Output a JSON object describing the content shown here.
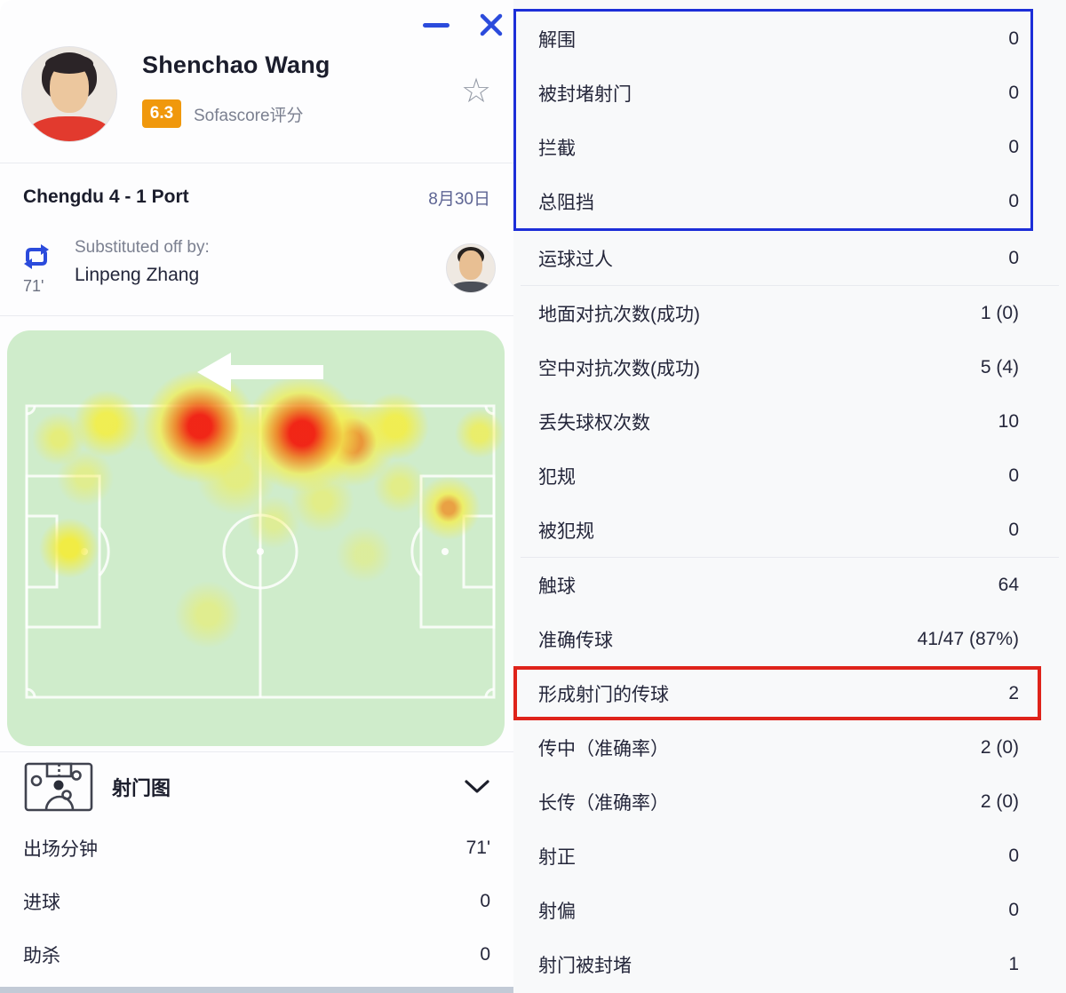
{
  "window": {
    "minimize_icon": "minimize",
    "close_icon": "close"
  },
  "player": {
    "name": "Shenchao Wang",
    "rating": "6.3",
    "rating_label": "Sofascore评分",
    "favorite_icon": "star-outline"
  },
  "match": {
    "title": "Chengdu 4 - 1 Port",
    "date": "8月30日"
  },
  "substitution": {
    "minute": "71'",
    "label": "Substituted off by:",
    "player_in": "Linpeng Zhang"
  },
  "heatmap": {
    "description": "player heatmap on horizontal pitch",
    "arrow_direction": "left"
  },
  "shotmap_section": {
    "title": "射门图"
  },
  "left_stats": [
    {
      "label": "出场分钟",
      "value": "71'"
    },
    {
      "label": "进球",
      "value": "0"
    },
    {
      "label": "助杀",
      "value": "0"
    }
  ],
  "right_stats": {
    "sections": [
      {
        "box": "blue",
        "rows": [
          {
            "label": "解围",
            "value": "0"
          },
          {
            "label": "被封堵射门",
            "value": "0"
          },
          {
            "label": "拦截",
            "value": "0"
          },
          {
            "label": "总阻挡",
            "value": "0"
          }
        ]
      },
      {
        "rows": [
          {
            "label": "运球过人",
            "value": "0"
          }
        ],
        "divider_after": true
      },
      {
        "rows": [
          {
            "label": "地面对抗次数(成功)",
            "value": "1 (0)"
          },
          {
            "label": "空中对抗次数(成功)",
            "value": "5 (4)"
          },
          {
            "label": "丢失球权次数",
            "value": "10"
          },
          {
            "label": "犯规",
            "value": "0"
          },
          {
            "label": "被犯规",
            "value": "0"
          }
        ],
        "divider_after": true
      },
      {
        "rows": [
          {
            "label": "触球",
            "value": "64"
          },
          {
            "label": "准确传球",
            "value": "41/47 (87%)"
          }
        ]
      },
      {
        "box": "red",
        "rows": [
          {
            "label": "形成射门的传球",
            "value": "2"
          }
        ]
      },
      {
        "rows": [
          {
            "label": "传中（准确率）",
            "value": "2 (0)"
          },
          {
            "label": "长传（准确率）",
            "value": "2 (0)"
          },
          {
            "label": "射正",
            "value": "0"
          },
          {
            "label": "射偏",
            "value": "0"
          },
          {
            "label": "射门被封堵",
            "value": "1"
          }
        ]
      }
    ]
  },
  "colors": {
    "accent_blue": "#2b4bdc",
    "annotation_blue": "#1c2ed8",
    "annotation_red": "#df231a",
    "rating_orange": "#f0980c",
    "heatmap_green": "#cfeccb"
  }
}
